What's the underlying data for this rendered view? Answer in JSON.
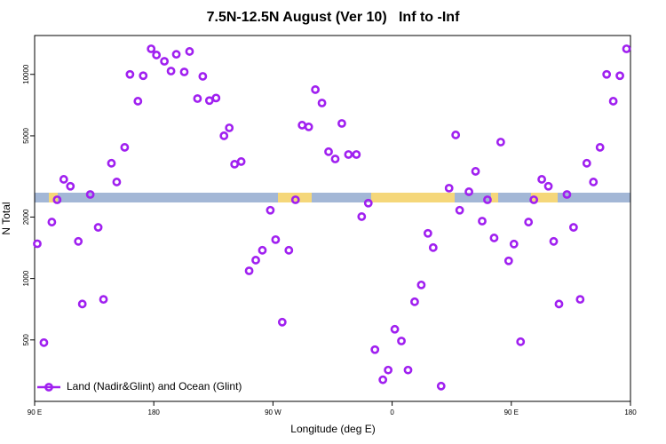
{
  "chart_data": {
    "type": "scatter",
    "title": "7.5N-12.5N August (Ver 10)   Inf to -Inf",
    "x_label": "Longitude (deg E)",
    "y_label": "N Total",
    "x": [
      92,
      97,
      103,
      107,
      112,
      117,
      123,
      126,
      132,
      138,
      142,
      148,
      152,
      158,
      162,
      168,
      172,
      178,
      182,
      188,
      193,
      197,
      203,
      207,
      213,
      217,
      222,
      227,
      233,
      237,
      241,
      246,
      252,
      257,
      262,
      268,
      272,
      277,
      282,
      287,
      292,
      297,
      302,
      307,
      312,
      317,
      322,
      327,
      333,
      337,
      342,
      347,
      353,
      357,
      362,
      367,
      372,
      377,
      382,
      387,
      391,
      397,
      403,
      408,
      411,
      418,
      423,
      428,
      432,
      437,
      442,
      448,
      452,
      457,
      463,
      467,
      473,
      478,
      482,
      486,
      492,
      497,
      502,
      507,
      512,
      517,
      522,
      527,
      532,
      537
    ],
    "series": [
      {
        "name": "Land (Nadir&Glint) and Ocean (Glint)",
        "color": "#a020f0",
        "values": [
          1480,
          485,
          1890,
          2430,
          3060,
          2830,
          1520,
          750,
          2580,
          1780,
          790,
          3670,
          2970,
          4390,
          10000,
          7390,
          9850,
          13340,
          12440,
          11590,
          10380,
          12540,
          10280,
          12950,
          7610,
          9780,
          7440,
          7660,
          5000,
          5470,
          3630,
          3740,
          1090,
          1230,
          1375,
          2160,
          1550,
          611,
          1375,
          2430,
          5640,
          5530,
          8420,
          7240,
          4180,
          3850,
          5750,
          4050,
          4050,
          2010,
          2340,
          448,
          319,
          356,
          564,
          494,
          356,
          769,
          930,
          1664,
          1417,
          297,
          2770,
          5050,
          2160,
          2660,
          3350,
          1910,
          2430,
          1580,
          4660,
          1220,
          1475,
          490,
          1890,
          2430,
          3060,
          2830,
          1520,
          750,
          2580,
          1780,
          790,
          3670,
          2970,
          4390,
          10000,
          7390,
          9850,
          13340
        ]
      }
    ],
    "xlim": [
      90,
      540
    ],
    "xticks": [
      {
        "value": 90,
        "label": "90 E"
      },
      180,
      {
        "value": 270,
        "label": "90 W"
      },
      {
        "value": 360,
        "label": "0"
      },
      {
        "value": 450,
        "label": "90 E"
      },
      {
        "value": 540,
        "label": "180"
      }
    ],
    "ylim": [
      250,
      15500
    ],
    "yticks": [
      500,
      1000,
      2000,
      5000,
      10000
    ],
    "ylog": true,
    "grid": false,
    "legend": "bottom-left"
  }
}
